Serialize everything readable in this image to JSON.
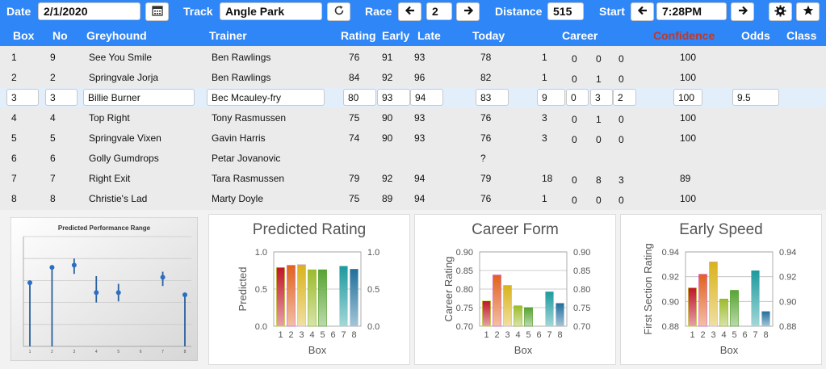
{
  "toolbar": {
    "date_label": "Date",
    "date_value": "2/1/2020",
    "track_label": "Track",
    "track_value": "Angle Park",
    "race_label": "Race",
    "race_value": "2",
    "distance_label": "Distance",
    "distance_value": "515",
    "start_label": "Start",
    "start_value": "7:28PM",
    "icons": [
      "calendar-icon",
      "refresh-icon",
      "arrow-left-icon",
      "arrow-right-icon",
      "gear-icon",
      "star-icon"
    ]
  },
  "columns": {
    "box": "Box",
    "no": "No",
    "greyhound": "Greyhound",
    "trainer": "Trainer",
    "rating": "Rating",
    "early": "Early",
    "late": "Late",
    "today": "Today",
    "career": "Career",
    "confidence": "Confidence",
    "odds": "Odds",
    "class": "Class"
  },
  "colors": {
    "header_bg": "#2f86f6",
    "confidence_header": "#c0392b",
    "selected_row": "#e3eefb"
  },
  "rows": [
    {
      "box": "1",
      "no": "9",
      "greyhound": "See You Smile",
      "trainer": "Ben Rawlings",
      "rating": "76",
      "early": "91",
      "late": "93",
      "today": "78",
      "c1": "1",
      "c2": "0",
      "c3": "0",
      "c4": "0",
      "confidence": "100",
      "odds": ""
    },
    {
      "box": "2",
      "no": "2",
      "greyhound": "Springvale Jorja",
      "trainer": "Ben Rawlings",
      "rating": "84",
      "early": "92",
      "late": "96",
      "today": "82",
      "c1": "1",
      "c2": "0",
      "c3": "1",
      "c4": "0",
      "confidence": "100",
      "odds": ""
    },
    {
      "box": "3",
      "no": "3",
      "greyhound": "Billie Burner",
      "trainer": "Bec Mcauley-fry",
      "rating": "80",
      "early": "93",
      "late": "94",
      "today": "83",
      "c1": "9",
      "c2": "0",
      "c3": "3",
      "c4": "2",
      "confidence": "100",
      "odds": "9.5"
    },
    {
      "box": "4",
      "no": "4",
      "greyhound": "Top Right",
      "trainer": "Tony Rasmussen",
      "rating": "75",
      "early": "90",
      "late": "93",
      "today": "76",
      "c1": "3",
      "c2": "0",
      "c3": "1",
      "c4": "0",
      "confidence": "100",
      "odds": ""
    },
    {
      "box": "5",
      "no": "5",
      "greyhound": "Springvale Vixen",
      "trainer": "Gavin Harris",
      "rating": "74",
      "early": "90",
      "late": "93",
      "today": "76",
      "c1": "3",
      "c2": "0",
      "c3": "0",
      "c4": "0",
      "confidence": "100",
      "odds": ""
    },
    {
      "box": "6",
      "no": "6",
      "greyhound": "Golly Gumdrops",
      "trainer": "Petar Jovanovic",
      "rating": "",
      "early": "",
      "late": "",
      "today": "?",
      "c1": "",
      "c2": "",
      "c3": "",
      "c4": "",
      "confidence": "",
      "odds": ""
    },
    {
      "box": "7",
      "no": "7",
      "greyhound": "Right Exit",
      "trainer": "Tara Rasmussen",
      "rating": "79",
      "early": "92",
      "late": "94",
      "today": "79",
      "c1": "18",
      "c2": "0",
      "c3": "8",
      "c4": "3",
      "confidence": "89",
      "odds": ""
    },
    {
      "box": "8",
      "no": "8",
      "greyhound": "Christie's Lad",
      "trainer": "Marty Doyle",
      "rating": "75",
      "early": "89",
      "late": "94",
      "today": "76",
      "c1": "1",
      "c2": "0",
      "c3": "0",
      "c4": "0",
      "confidence": "100",
      "odds": ""
    }
  ],
  "chart_data": [
    {
      "type": "scatter",
      "title": "Predicted Performance Range",
      "x": [
        1,
        2,
        3,
        4,
        5,
        7,
        8
      ],
      "y": [
        0.58,
        0.72,
        0.74,
        0.49,
        0.49,
        0.63,
        0.47
      ],
      "lo": [
        0.58,
        0.72,
        0.66,
        0.4,
        0.41,
        0.55,
        0.47
      ],
      "hi": [
        0.58,
        0.72,
        0.8,
        0.64,
        0.57,
        0.68,
        0.47
      ],
      "ylim": [
        0,
        1
      ],
      "grid": true
    },
    {
      "type": "bar",
      "title": "Predicted Rating",
      "ylabel": "Predicted",
      "xlabel": "Box",
      "categories": [
        "1",
        "2",
        "3",
        "4",
        "5",
        "6",
        "7",
        "8"
      ],
      "values": [
        0.79,
        0.82,
        0.83,
        0.76,
        0.76,
        null,
        0.81,
        0.77
      ],
      "ylim": [
        0,
        1.0
      ],
      "yticks": [
        "0.0",
        "0.5",
        "1.0"
      ],
      "colors": [
        "#c0152b",
        "#e0621c",
        "#d9b21a",
        "#9cbb2c",
        "#58a333",
        "#2e9e79",
        "#1b9a9e",
        "#1f6e9c"
      ]
    },
    {
      "type": "bar",
      "title": "Career Form",
      "ylabel": "Career Rating",
      "xlabel": "Box",
      "categories": [
        "1",
        "2",
        "3",
        "4",
        "5",
        "6",
        "7",
        "8"
      ],
      "values": [
        0.768,
        0.838,
        0.81,
        0.755,
        0.75,
        null,
        0.793,
        0.762
      ],
      "ylim": [
        0.7,
        0.9
      ],
      "yticks": [
        "0.70",
        "0.75",
        "0.80",
        "0.85",
        "0.90"
      ],
      "colors": [
        "#c0152b",
        "#e0621c",
        "#d9b21a",
        "#9cbb2c",
        "#58a333",
        "#2e9e79",
        "#1b9a9e",
        "#1f6e9c"
      ]
    },
    {
      "type": "bar",
      "title": "Early Speed",
      "ylabel": "First Section Rating",
      "xlabel": "Box",
      "categories": [
        "1",
        "2",
        "3",
        "4",
        "5",
        "6",
        "7",
        "8"
      ],
      "values": [
        0.911,
        0.922,
        0.932,
        0.902,
        0.909,
        null,
        0.925,
        0.892
      ],
      "ylim": [
        0.88,
        0.94
      ],
      "yticks": [
        "0.88",
        "0.90",
        "0.92",
        "0.94"
      ],
      "colors": [
        "#c0152b",
        "#e0621c",
        "#d9b21a",
        "#9cbb2c",
        "#58a333",
        "#2e9e79",
        "#1b9a9e",
        "#1f6e9c"
      ]
    }
  ]
}
